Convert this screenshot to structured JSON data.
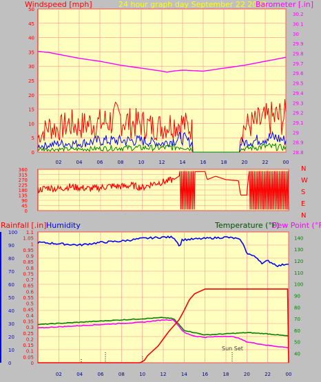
{
  "colors": {
    "bg": "#c0c0c0",
    "plot_bg": "#ffffc0",
    "grid": "#ff9090",
    "red": "#ff0000",
    "blue": "#0000ff",
    "green": "#008000",
    "magenta": "#ff00ff",
    "yellow": "#ffff00",
    "dark_green": "#005000"
  },
  "header": {
    "left": "Windspeed [mph]",
    "center": "24 hour graph day   September 22 2022",
    "right": "Barometer [.in]"
  },
  "compass_letters": [
    "N",
    "W",
    "S",
    "E",
    "N"
  ],
  "lower_header": {
    "rainfall": "Rainfall [.in]",
    "humidity": "Humidity",
    "temperature": "Temperature (°F)",
    "dewpoint": "Dew Point (°F)"
  },
  "annotation": "Sun Set",
  "chart_data": [
    {
      "type": "line",
      "name": "wind",
      "x_ticks": [
        "02",
        "04",
        "06",
        "08",
        "10",
        "12",
        "14",
        "16",
        "18",
        "20",
        "22",
        "00"
      ],
      "left_ticks": [
        "0",
        "5",
        "10",
        "15",
        "20",
        "25",
        "30",
        "35",
        "40",
        "45",
        "50"
      ],
      "right_ticks": [
        "28.8",
        "28.9",
        "29",
        "29.1",
        "29.2",
        "29.3",
        "29.4",
        "29.5",
        "29.6",
        "29.7",
        "29.8",
        "29.9",
        "30",
        "30.1",
        "30.2"
      ],
      "ylim_left": [
        0,
        50
      ],
      "ylim_right": [
        28.8,
        30.25
      ],
      "series": [
        {
          "name": "gust",
          "color": "red",
          "hours": [
            0,
            1,
            2,
            3,
            4,
            5,
            6,
            7,
            8,
            9,
            10,
            11,
            12,
            13,
            14,
            14.9,
            15,
            19.5,
            19.6,
            20,
            21,
            22,
            23,
            24
          ],
          "values": [
            5,
            9,
            8,
            10,
            9,
            10,
            10,
            11,
            12,
            10,
            10,
            9,
            9,
            10,
            10,
            8,
            0,
            0,
            6,
            9,
            10,
            11,
            12,
            12
          ]
        },
        {
          "name": "wind",
          "color": "blue",
          "hours": [
            0,
            2,
            4,
            6,
            8,
            10,
            12,
            13,
            14,
            14.9,
            15,
            19.5,
            19.6,
            21,
            22,
            23,
            24
          ],
          "values": [
            2,
            3,
            3,
            4,
            4,
            4,
            3,
            4,
            5,
            3,
            0,
            0,
            3,
            4,
            5,
            5,
            4
          ]
        },
        {
          "name": "calm",
          "color": "green",
          "hours": [
            0,
            4,
            8,
            12,
            14,
            14.9,
            15,
            19.5,
            19.6,
            22,
            24
          ],
          "values": [
            1,
            1,
            1.5,
            1.5,
            2,
            1,
            0,
            0,
            1,
            2,
            1.5
          ]
        }
      ],
      "barometer": {
        "hours": [
          0,
          1,
          2,
          4,
          6,
          8,
          10,
          12,
          12.5,
          13,
          14,
          16,
          18,
          20,
          22,
          23,
          24
        ],
        "values": [
          29.82,
          29.81,
          29.79,
          29.75,
          29.72,
          29.68,
          29.65,
          29.62,
          29.61,
          29.62,
          29.63,
          29.62,
          29.65,
          29.68,
          29.72,
          29.74,
          29.76
        ]
      }
    },
    {
      "type": "line",
      "name": "wind_direction",
      "left_ticks": [
        "0",
        "45",
        "90",
        "135",
        "180",
        "225",
        "270",
        "315",
        "360"
      ],
      "ylim": [
        0,
        360
      ],
      "x_ticks": [
        "02",
        "04",
        "06",
        "08",
        "10",
        "12",
        "14",
        "16",
        "18",
        "20",
        "22",
        "00"
      ],
      "points": [
        [
          0,
          180
        ],
        [
          1,
          200
        ],
        [
          2,
          190
        ],
        [
          3,
          210
        ],
        [
          4,
          200
        ],
        [
          5,
          190
        ],
        [
          6,
          200
        ],
        [
          7,
          215
        ],
        [
          8,
          210
        ],
        [
          9,
          220
        ],
        [
          10,
          200
        ],
        [
          11,
          235
        ],
        [
          12,
          250
        ],
        [
          13,
          270
        ],
        [
          13.5,
          300
        ],
        [
          13.9,
          340
        ],
        [
          14.6,
          330
        ],
        [
          15,
          340
        ],
        [
          16,
          340
        ],
        [
          16.2,
          270
        ],
        [
          17,
          300
        ],
        [
          18,
          270
        ],
        [
          19.2,
          260
        ],
        [
          19.4,
          135
        ],
        [
          20,
          135
        ],
        [
          20.2,
          340
        ],
        [
          24,
          340
        ]
      ]
    },
    {
      "type": "line",
      "name": "temperature_humidity",
      "x_ticks": [
        "02",
        "04",
        "06",
        "08",
        "10",
        "12",
        "14",
        "16",
        "18",
        "20",
        "22",
        "00"
      ],
      "left_ticks": [
        "0",
        "10",
        "20",
        "30",
        "40",
        "50",
        "60",
        "70",
        "80",
        "90",
        "100"
      ],
      "rain_ticks": [
        "0",
        "0.05",
        "0.1",
        "0.15",
        "0.2",
        "0.25",
        "0.3",
        "0.35",
        "0.4",
        "0.45",
        "0.5",
        "0.55",
        "0.6",
        "0.65",
        "0.7",
        "0.75",
        "0.8",
        "0.85",
        "0.9",
        "0.95",
        "1",
        "1.05",
        "1.1"
      ],
      "right_ticks": [
        "40",
        "50",
        "60",
        "70",
        "80",
        "90",
        "100",
        "110",
        "120",
        "130",
        "140"
      ],
      "ylim_left": [
        0,
        100
      ],
      "ylim_rain": [
        0,
        1.1
      ],
      "ylim_right": [
        32,
        145
      ],
      "series": [
        {
          "name": "humidity",
          "color": "blue",
          "hours": [
            0,
            2,
            4,
            6,
            8,
            10,
            12,
            13,
            13.6,
            13.8,
            16,
            18,
            19,
            19.5,
            20,
            21,
            21.5,
            22,
            23,
            24
          ],
          "values": [
            92,
            91,
            90,
            92,
            93,
            95,
            96,
            96,
            89,
            94,
            95,
            96,
            95,
            93,
            84,
            80,
            76,
            78,
            74,
            76
          ]
        },
        {
          "name": "temperature",
          "color": "green",
          "hours": [
            0,
            2,
            4,
            6,
            8,
            10,
            12,
            13,
            14,
            15,
            16,
            18,
            20,
            22,
            24
          ],
          "values": [
            65,
            66,
            67,
            68,
            69,
            70,
            71,
            70,
            60,
            58,
            56,
            57,
            58,
            57,
            55
          ]
        },
        {
          "name": "dewpoint",
          "color": "magenta",
          "hours": [
            0,
            2,
            4,
            6,
            8,
            10,
            12,
            13,
            14,
            15,
            16,
            18,
            19,
            20,
            22,
            24
          ],
          "values": [
            62,
            63,
            64,
            65,
            66,
            67,
            69,
            69,
            58,
            55,
            54,
            55,
            54,
            50,
            47,
            45
          ]
        },
        {
          "name": "rainfall",
          "color": "red",
          "hours": [
            0,
            9.8,
            10.2,
            10.5,
            11,
            11.5,
            12,
            12.5,
            13,
            13.5,
            14,
            14.5,
            15,
            16,
            18,
            20,
            23.9,
            24
          ],
          "values": [
            0,
            0,
            0.02,
            0.06,
            0.1,
            0.14,
            0.2,
            0.26,
            0.31,
            0.36,
            0.44,
            0.53,
            0.58,
            0.62,
            0.62,
            0.62,
            0.62,
            0
          ]
        }
      ]
    }
  ]
}
